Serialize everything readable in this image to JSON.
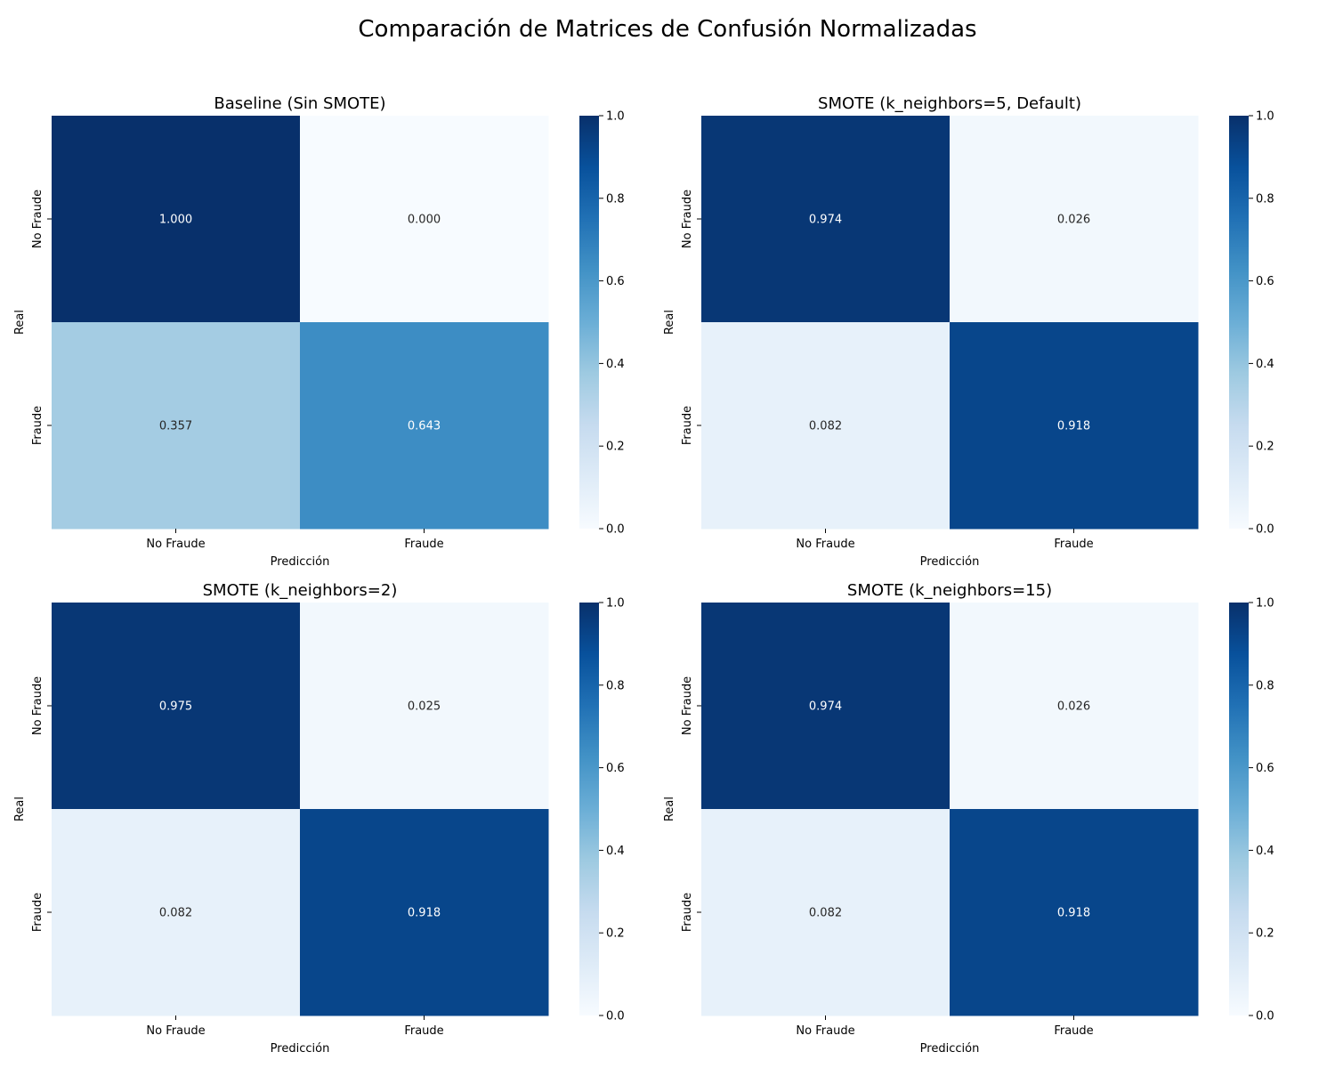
{
  "title": "Comparación de Matrices de Confusión Normalizadas",
  "colormap": {
    "name": "Blues",
    "stops": [
      "#f7fbff",
      "#deebf7",
      "#c6dbef",
      "#9ecae1",
      "#6baed6",
      "#4292c6",
      "#2171b5",
      "#08519c",
      "#08306b"
    ]
  },
  "chart_data": [
    {
      "type": "heatmap",
      "title": "Baseline (Sin SMOTE)",
      "xlabel": "Predicción",
      "ylabel": "Real",
      "x_categories": [
        "No Fraude",
        "Fraude"
      ],
      "y_categories": [
        "No Fraude",
        "Fraude"
      ],
      "values": [
        [
          1.0,
          0.0
        ],
        [
          0.357,
          0.643
        ]
      ],
      "colorbar": {
        "range": [
          0.0,
          1.0
        ],
        "ticks": [
          "0.0",
          "0.2",
          "0.4",
          "0.6",
          "0.8",
          "1.0"
        ]
      }
    },
    {
      "type": "heatmap",
      "title": "SMOTE (k_neighbors=5, Default)",
      "xlabel": "Predicción",
      "ylabel": "Real",
      "x_categories": [
        "No Fraude",
        "Fraude"
      ],
      "y_categories": [
        "No Fraude",
        "Fraude"
      ],
      "values": [
        [
          0.974,
          0.026
        ],
        [
          0.082,
          0.918
        ]
      ],
      "colorbar": {
        "range": [
          0.0,
          1.0
        ],
        "ticks": [
          "0.0",
          "0.2",
          "0.4",
          "0.6",
          "0.8",
          "1.0"
        ]
      }
    },
    {
      "type": "heatmap",
      "title": "SMOTE (k_neighbors=2)",
      "xlabel": "Predicción",
      "ylabel": "Real",
      "x_categories": [
        "No Fraude",
        "Fraude"
      ],
      "y_categories": [
        "No Fraude",
        "Fraude"
      ],
      "values": [
        [
          0.975,
          0.025
        ],
        [
          0.082,
          0.918
        ]
      ],
      "colorbar": {
        "range": [
          0.0,
          1.0
        ],
        "ticks": [
          "0.0",
          "0.2",
          "0.4",
          "0.6",
          "0.8",
          "1.0"
        ]
      }
    },
    {
      "type": "heatmap",
      "title": "SMOTE (k_neighbors=15)",
      "xlabel": "Predicción",
      "ylabel": "Real",
      "x_categories": [
        "No Fraude",
        "Fraude"
      ],
      "y_categories": [
        "No Fraude",
        "Fraude"
      ],
      "values": [
        [
          0.974,
          0.026
        ],
        [
          0.082,
          0.918
        ]
      ],
      "colorbar": {
        "range": [
          0.0,
          1.0
        ],
        "ticks": [
          "0.0",
          "0.2",
          "0.4",
          "0.6",
          "0.8",
          "1.0"
        ]
      }
    }
  ]
}
